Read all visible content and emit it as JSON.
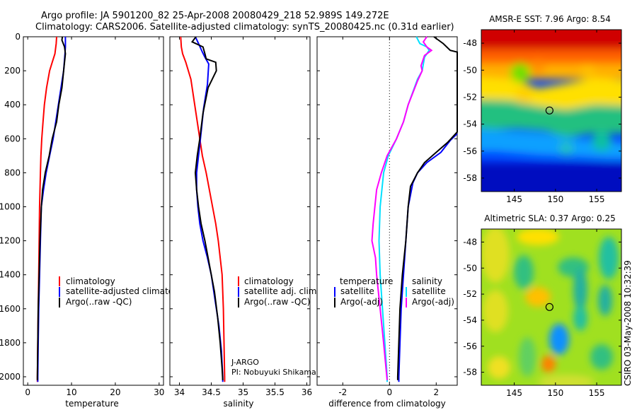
{
  "header": {
    "line1": "Argo profile: JA 5901200_82 25-Apr-2008 20080429_218 52.989S 149.272E",
    "line2": "Climatology: CARS2006. Satellite-adjusted climatology: synTS_20080425.nc (0.31d earlier)"
  },
  "watermark": "CSIRO 03-May-2008 10:32:39",
  "chart_data": [
    {
      "type": "line",
      "id": "temperature",
      "xlabel": "temperature",
      "xlim": [
        -1,
        31
      ],
      "ylim": [
        2050,
        0
      ],
      "xticks": [
        0,
        10,
        20,
        30
      ],
      "yticks": [
        0,
        200,
        400,
        600,
        800,
        1000,
        1200,
        1400,
        1600,
        1800,
        2000
      ],
      "legend": [
        "climatology",
        "satellite-adjusted climatology",
        "Argo(..raw -QC)"
      ],
      "series": [
        {
          "name": "climatology",
          "color": "#ff0000",
          "points": [
            [
              6.6,
              0
            ],
            [
              6.5,
              40
            ],
            [
              6.2,
              100
            ],
            [
              5.6,
              150
            ],
            [
              5.0,
              200
            ],
            [
              4.3,
              300
            ],
            [
              3.8,
              400
            ],
            [
              3.5,
              500
            ],
            [
              3.2,
              600
            ],
            [
              3.0,
              700
            ],
            [
              2.9,
              800
            ],
            [
              2.8,
              900
            ],
            [
              2.7,
              1000
            ],
            [
              2.6,
              1200
            ],
            [
              2.5,
              1400
            ],
            [
              2.4,
              1600
            ],
            [
              2.3,
              1800
            ],
            [
              2.2,
              2000
            ],
            [
              2.2,
              2030
            ]
          ]
        },
        {
          "name": "satellite-adjusted climatology",
          "color": "#0000ff",
          "points": [
            [
              8.6,
              0
            ],
            [
              8.6,
              60
            ],
            [
              8.5,
              100
            ],
            [
              8.2,
              200
            ],
            [
              7.6,
              300
            ],
            [
              7.0,
              400
            ],
            [
              6.4,
              500
            ],
            [
              5.8,
              600
            ],
            [
              5.0,
              700
            ],
            [
              4.2,
              800
            ],
            [
              3.6,
              900
            ],
            [
              3.1,
              1000
            ],
            [
              2.9,
              1200
            ],
            [
              2.7,
              1400
            ],
            [
              2.5,
              1600
            ],
            [
              2.4,
              1800
            ],
            [
              2.3,
              2000
            ],
            [
              2.3,
              2030
            ]
          ]
        },
        {
          "name": "Argo(..raw -QC)",
          "color": "#000000",
          "points": [
            [
              7.9,
              0
            ],
            [
              7.8,
              20
            ],
            [
              8.4,
              60
            ],
            [
              8.6,
              100
            ],
            [
              8.2,
              200
            ],
            [
              7.8,
              300
            ],
            [
              7.1,
              400
            ],
            [
              6.6,
              500
            ],
            [
              5.6,
              600
            ],
            [
              4.9,
              700
            ],
            [
              4.0,
              800
            ],
            [
              3.4,
              900
            ],
            [
              3.1,
              1000
            ],
            [
              2.8,
              1200
            ],
            [
              2.6,
              1400
            ],
            [
              2.4,
              1600
            ],
            [
              2.3,
              1800
            ],
            [
              2.2,
              2000
            ],
            [
              2.2,
              2020
            ]
          ]
        }
      ]
    },
    {
      "type": "line",
      "id": "salinity",
      "xlabel": "salinity",
      "xlim": [
        33.85,
        36.05
      ],
      "ylim": [
        2050,
        0
      ],
      "xticks": [
        34,
        34.5,
        35,
        35.5,
        36
      ],
      "legend": [
        "climatology",
        "satellite adj. clim.",
        "Argo(..raw -QC)"
      ],
      "note_line1": "J-ARGO",
      "note_line2": "PI: Nobuyuki Shikama",
      "series": [
        {
          "name": "climatology",
          "color": "#ff0000",
          "points": [
            [
              34.02,
              0
            ],
            [
              34.03,
              60
            ],
            [
              34.05,
              100
            ],
            [
              34.1,
              150
            ],
            [
              34.18,
              250
            ],
            [
              34.24,
              400
            ],
            [
              34.28,
              500
            ],
            [
              34.32,
              600
            ],
            [
              34.36,
              700
            ],
            [
              34.42,
              800
            ],
            [
              34.47,
              900
            ],
            [
              34.52,
              1000
            ],
            [
              34.57,
              1100
            ],
            [
              34.61,
              1200
            ],
            [
              34.64,
              1300
            ],
            [
              34.67,
              1400
            ],
            [
              34.69,
              1600
            ],
            [
              34.7,
              1800
            ],
            [
              34.71,
              2000
            ],
            [
              34.71,
              2030
            ]
          ]
        },
        {
          "name": "satellite adj. clim.",
          "color": "#0000ff",
          "points": [
            [
              34.25,
              0
            ],
            [
              34.3,
              40
            ],
            [
              34.36,
              90
            ],
            [
              34.4,
              120
            ],
            [
              34.46,
              160
            ],
            [
              34.44,
              280
            ],
            [
              34.38,
              420
            ],
            [
              34.33,
              600
            ],
            [
              34.3,
              700
            ],
            [
              34.27,
              800
            ],
            [
              34.27,
              900
            ],
            [
              34.29,
              1000
            ],
            [
              34.32,
              1100
            ],
            [
              34.37,
              1200
            ],
            [
              34.44,
              1300
            ],
            [
              34.5,
              1400
            ],
            [
              34.56,
              1550
            ],
            [
              34.62,
              1700
            ],
            [
              34.66,
              1850
            ],
            [
              34.68,
              2000
            ],
            [
              34.68,
              2030
            ]
          ]
        },
        {
          "name": "Argo(..raw -QC)",
          "color": "#000000",
          "points": [
            [
              34.26,
              0
            ],
            [
              34.2,
              30
            ],
            [
              34.37,
              60
            ],
            [
              34.4,
              100
            ],
            [
              34.42,
              130
            ],
            [
              34.57,
              150
            ],
            [
              34.58,
              200
            ],
            [
              34.45,
              300
            ],
            [
              34.37,
              450
            ],
            [
              34.32,
              600
            ],
            [
              34.28,
              700
            ],
            [
              34.25,
              800
            ],
            [
              34.27,
              900
            ],
            [
              34.3,
              1000
            ],
            [
              34.34,
              1100
            ],
            [
              34.4,
              1200
            ],
            [
              34.45,
              1300
            ],
            [
              34.5,
              1400
            ],
            [
              34.55,
              1500
            ],
            [
              34.6,
              1650
            ],
            [
              34.64,
              1800
            ],
            [
              34.67,
              1950
            ],
            [
              34.68,
              2020
            ]
          ]
        }
      ]
    },
    {
      "type": "line",
      "id": "difference",
      "xlabel": "difference from climatology",
      "xlim": [
        -3.1,
        2.9
      ],
      "ylim": [
        2050,
        0
      ],
      "xticks": [
        -2,
        0,
        2
      ],
      "zero_line": true,
      "legend_group1_title": "temperature",
      "legend_group1": [
        "satellite",
        "Argo(-adj)"
      ],
      "legend_group2_title": "salinity",
      "legend_group2": [
        "satellite",
        "Argo(-adj)"
      ],
      "series": [
        {
          "name": "temperature satellite",
          "color": "#0000ff",
          "points": [
            [
              2.9,
              570
            ],
            [
              2.6,
              610
            ],
            [
              2.2,
              680
            ],
            [
              1.6,
              740
            ],
            [
              1.2,
              800
            ],
            [
              1.0,
              860
            ],
            [
              0.8,
              1000
            ],
            [
              0.7,
              1200
            ],
            [
              0.6,
              1400
            ],
            [
              0.5,
              1600
            ],
            [
              0.45,
              1800
            ],
            [
              0.4,
              2000
            ],
            [
              0.4,
              2030
            ]
          ]
        },
        {
          "name": "temperature Argo(-adj)",
          "color": "#000000",
          "points": [
            [
              1.9,
              0
            ],
            [
              2.3,
              40
            ],
            [
              2.6,
              80
            ],
            [
              2.9,
              90
            ],
            [
              2.9,
              560
            ],
            [
              2.5,
              620
            ],
            [
              2.0,
              680
            ],
            [
              1.5,
              740
            ],
            [
              1.2,
              800
            ],
            [
              0.9,
              880
            ],
            [
              0.8,
              1000
            ],
            [
              0.7,
              1200
            ],
            [
              0.55,
              1400
            ],
            [
              0.45,
              1600
            ],
            [
              0.4,
              1800
            ],
            [
              0.35,
              2000
            ],
            [
              0.35,
              2020
            ]
          ]
        },
        {
          "name": "salinity satellite",
          "color": "#00e0ff",
          "points": [
            [
              1.15,
              0
            ],
            [
              1.3,
              40
            ],
            [
              1.6,
              60
            ],
            [
              1.7,
              80
            ],
            [
              1.5,
              120
            ],
            [
              1.4,
              200
            ],
            [
              1.2,
              250
            ],
            [
              0.8,
              400
            ],
            [
              0.6,
              500
            ],
            [
              0.3,
              600
            ],
            [
              -0.05,
              700
            ],
            [
              -0.25,
              800
            ],
            [
              -0.4,
              1000
            ],
            [
              -0.45,
              1200
            ],
            [
              -0.4,
              1400
            ],
            [
              -0.3,
              1600
            ],
            [
              -0.2,
              1800
            ],
            [
              -0.1,
              2000
            ],
            [
              -0.1,
              2030
            ]
          ]
        },
        {
          "name": "salinity Argo(-adj)",
          "color": "#ff00ff",
          "points": [
            [
              1.6,
              0
            ],
            [
              1.45,
              30
            ],
            [
              1.6,
              60
            ],
            [
              1.8,
              80
            ],
            [
              1.5,
              110
            ],
            [
              1.35,
              170
            ],
            [
              1.4,
              200
            ],
            [
              1.2,
              260
            ],
            [
              0.8,
              400
            ],
            [
              0.6,
              500
            ],
            [
              0.3,
              600
            ],
            [
              -0.1,
              700
            ],
            [
              -0.35,
              800
            ],
            [
              -0.55,
              900
            ],
            [
              -0.7,
              1100
            ],
            [
              -0.75,
              1200
            ],
            [
              -0.6,
              1300
            ],
            [
              -0.55,
              1400
            ],
            [
              -0.4,
              1600
            ],
            [
              -0.25,
              1800
            ],
            [
              -0.15,
              1950
            ],
            [
              -0.1,
              2020
            ]
          ]
        }
      ]
    },
    {
      "type": "heatmap",
      "id": "sst-map",
      "title": "AMSR-E SST: 7.96 Argo: 8.54",
      "xlim": [
        141,
        158
      ],
      "ylim": [
        -59,
        -47
      ],
      "xticks": [
        145,
        150,
        155
      ],
      "yticks": [
        -48,
        -50,
        -52,
        -54,
        -56,
        -58
      ],
      "argo_location": {
        "lon": 149.272,
        "lat": -52.989
      }
    },
    {
      "type": "heatmap",
      "id": "sla-map",
      "title": "Altimetric SLA: 0.37 Argo: 0.25",
      "xlim": [
        141,
        158
      ],
      "ylim": [
        -59,
        -47
      ],
      "xticks": [
        145,
        150,
        155
      ],
      "yticks": [
        -48,
        -50,
        -52,
        -54,
        -56,
        -58
      ],
      "argo_location": {
        "lon": 149.272,
        "lat": -52.989
      }
    }
  ]
}
